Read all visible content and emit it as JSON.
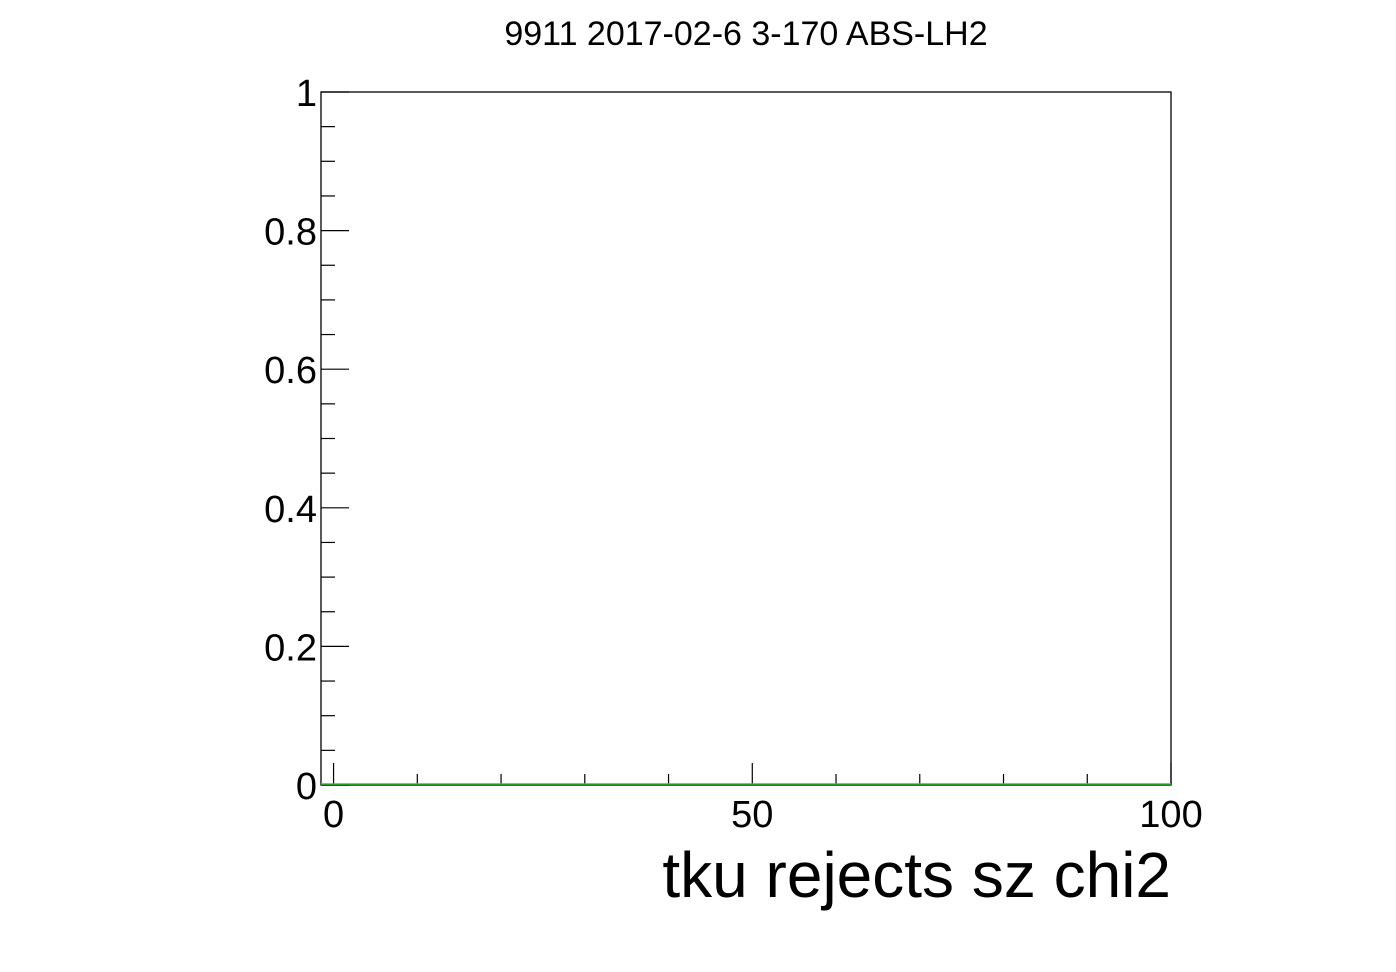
{
  "chart_data": {
    "type": "line",
    "title": "9911 2017-02-6 3-170 ABS-LH2",
    "xlabel": "tku rejects sz chi2",
    "ylabel": "",
    "xlim": [
      -1.5,
      100
    ],
    "ylim": [
      0,
      1
    ],
    "x_ticks": [
      0,
      50,
      100
    ],
    "x_tick_labels": [
      "0",
      "50",
      "100"
    ],
    "y_ticks": [
      0,
      0.2,
      0.4,
      0.6,
      0.8,
      1
    ],
    "y_tick_labels": [
      "0",
      "0.2",
      "0.4",
      "0.6",
      "0.8",
      "1"
    ],
    "grid": false,
    "legend": "none",
    "series": [
      {
        "x": [
          -1.5,
          100
        ],
        "y": [
          0,
          0
        ],
        "color": "#33cc33"
      }
    ]
  }
}
